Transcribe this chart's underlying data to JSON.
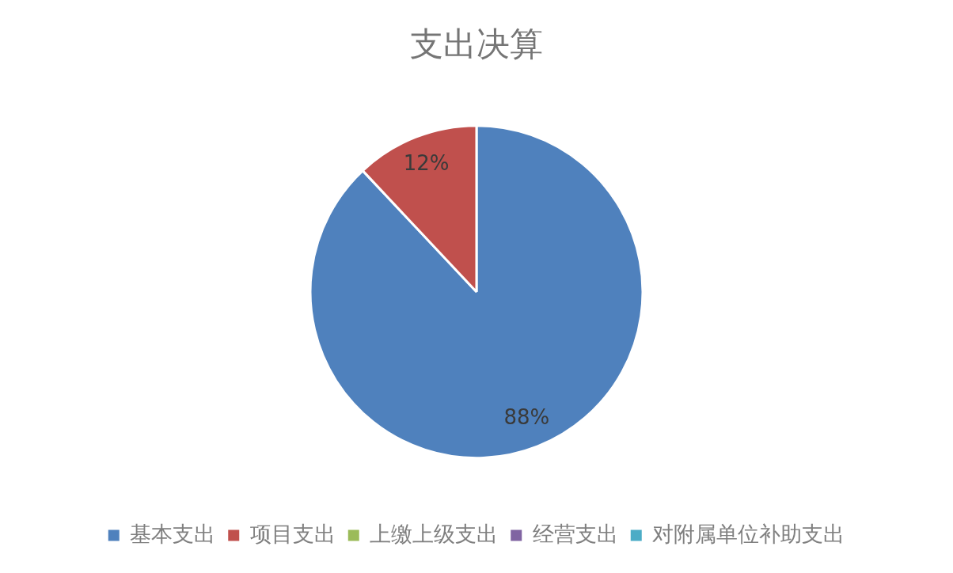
{
  "chart_data": {
    "type": "pie",
    "title": "支出决算",
    "categories": [
      "基本支出",
      "项目支出",
      "上缴上级支出",
      "经营支出",
      "对附属单位补助支出"
    ],
    "values": [
      88,
      12,
      0,
      0,
      0
    ],
    "colors": [
      "#4f81bd",
      "#c0504d",
      "#9bbb59",
      "#8064a2",
      "#4bacc6"
    ],
    "value_labels": [
      "88%",
      "12%",
      null,
      null,
      null
    ],
    "legend": "bottom"
  }
}
